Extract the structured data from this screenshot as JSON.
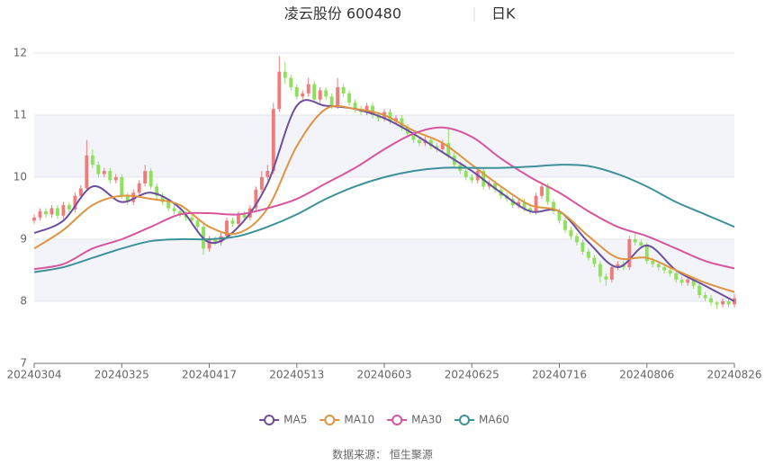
{
  "chart_data": {
    "type": "candlestick",
    "title": "凌云股份 600480",
    "period": "日K",
    "source": "数据来源： 恒生聚源",
    "up_color": "#f07b7b",
    "down_color": "#8fe05a",
    "xlim": [
      0,
      120
    ],
    "xticks": [
      {
        "value": 0,
        "label": "20240304"
      },
      {
        "value": 15,
        "label": "20240325"
      },
      {
        "value": 30,
        "label": "20240417"
      },
      {
        "value": 45,
        "label": "20240513"
      },
      {
        "value": 60,
        "label": "20240603"
      },
      {
        "value": 75,
        "label": "20240625"
      },
      {
        "value": 90,
        "label": "20240716"
      },
      {
        "value": 105,
        "label": "20240806"
      },
      {
        "value": 120,
        "label": "20240826"
      }
    ],
    "ylim": [
      7,
      12
    ],
    "yticks": [
      7,
      8,
      9,
      10,
      11,
      12
    ],
    "grid": true,
    "open": [
      9.3,
      9.35,
      9.45,
      9.4,
      9.5,
      9.38,
      9.55,
      9.48,
      9.7,
      9.82,
      10.35,
      10.2,
      10.05,
      10.1,
      9.95,
      10.0,
      9.7,
      9.6,
      9.75,
      9.9,
      10.1,
      9.85,
      9.7,
      9.6,
      9.5,
      9.45,
      9.4,
      9.35,
      9.3,
      9.2,
      8.85,
      9.0,
      8.95,
      9.05,
      9.3,
      9.25,
      9.4,
      9.35,
      9.5,
      9.8,
      10.0,
      10.1,
      11.1,
      11.7,
      11.6,
      11.45,
      11.3,
      11.35,
      11.5,
      11.25,
      11.4,
      11.3,
      11.15,
      11.45,
      11.35,
      11.2,
      11.1,
      11.05,
      11.15,
      11.0,
      10.95,
      11.05,
      10.9,
      10.95,
      10.8,
      10.7,
      10.6,
      10.55,
      10.6,
      10.5,
      10.45,
      10.55,
      10.35,
      10.2,
      10.1,
      10.0,
      9.95,
      10.1,
      9.85,
      9.9,
      9.8,
      9.7,
      9.65,
      9.55,
      9.6,
      9.5,
      9.45,
      9.7,
      9.85,
      9.6,
      9.45,
      9.3,
      9.15,
      9.05,
      8.95,
      8.8,
      8.7,
      8.6,
      8.4,
      8.35,
      8.55,
      8.6,
      8.55,
      9.0,
      8.95,
      8.9,
      8.65,
      8.6,
      8.55,
      8.5,
      8.45,
      8.35,
      8.3,
      8.35,
      8.25,
      8.1,
      8.05,
      7.98,
      7.95,
      8.0,
      7.95
    ],
    "close": [
      9.35,
      9.45,
      9.4,
      9.5,
      9.38,
      9.55,
      9.48,
      9.7,
      9.82,
      10.35,
      10.2,
      10.05,
      10.1,
      9.95,
      10.0,
      9.7,
      9.6,
      9.75,
      9.9,
      10.1,
      9.85,
      9.7,
      9.6,
      9.5,
      9.45,
      9.4,
      9.35,
      9.3,
      9.2,
      8.85,
      9.0,
      8.95,
      9.05,
      9.3,
      9.25,
      9.4,
      9.35,
      9.5,
      9.8,
      10.0,
      10.1,
      11.1,
      11.7,
      11.6,
      11.45,
      11.3,
      11.35,
      11.5,
      11.25,
      11.4,
      11.3,
      11.15,
      11.45,
      11.35,
      11.2,
      11.1,
      11.05,
      11.15,
      11.0,
      10.95,
      11.05,
      10.9,
      10.95,
      10.8,
      10.7,
      10.6,
      10.55,
      10.6,
      10.5,
      10.45,
      10.55,
      10.35,
      10.2,
      10.1,
      10.0,
      9.95,
      10.1,
      9.85,
      9.9,
      9.8,
      9.7,
      9.65,
      9.55,
      9.6,
      9.5,
      9.45,
      9.7,
      9.85,
      9.6,
      9.45,
      9.3,
      9.15,
      9.05,
      8.95,
      8.8,
      8.7,
      8.6,
      8.4,
      8.35,
      8.55,
      8.6,
      8.55,
      9.0,
      8.95,
      8.9,
      8.65,
      8.6,
      8.55,
      8.5,
      8.45,
      8.35,
      8.3,
      8.35,
      8.25,
      8.1,
      8.05,
      7.98,
      7.95,
      8.0,
      7.95,
      8.05
    ],
    "high": [
      9.4,
      9.5,
      9.5,
      9.55,
      9.55,
      9.6,
      9.6,
      9.75,
      9.87,
      10.6,
      10.45,
      10.25,
      10.15,
      10.15,
      10.05,
      10.05,
      9.75,
      9.8,
      9.95,
      10.2,
      10.15,
      9.9,
      9.75,
      9.65,
      9.55,
      9.5,
      9.45,
      9.4,
      9.35,
      9.25,
      9.05,
      9.05,
      9.1,
      9.35,
      9.35,
      9.45,
      9.45,
      9.55,
      9.85,
      10.1,
      10.2,
      11.2,
      11.95,
      11.85,
      11.65,
      11.5,
      11.4,
      11.6,
      11.55,
      11.45,
      11.45,
      11.35,
      11.6,
      11.5,
      11.4,
      11.25,
      11.15,
      11.2,
      11.2,
      11.05,
      11.1,
      11.1,
      11.0,
      11.0,
      10.85,
      10.75,
      10.65,
      10.65,
      10.65,
      10.55,
      10.6,
      10.8,
      10.4,
      10.25,
      10.15,
      10.05,
      10.15,
      10.15,
      9.95,
      9.95,
      9.85,
      9.75,
      9.7,
      9.65,
      9.65,
      9.55,
      9.75,
      9.9,
      9.9,
      9.65,
      9.5,
      9.35,
      9.2,
      9.1,
      9.0,
      8.85,
      8.75,
      8.65,
      8.45,
      8.6,
      8.65,
      8.65,
      9.05,
      9.1,
      9.0,
      8.95,
      8.7,
      8.65,
      8.6,
      8.55,
      8.5,
      8.4,
      8.4,
      8.4,
      8.3,
      8.15,
      8.1,
      8.0,
      8.05,
      8.05,
      8.12
    ],
    "low": [
      9.25,
      9.3,
      9.35,
      9.35,
      9.33,
      9.33,
      9.43,
      9.43,
      9.65,
      9.77,
      10.15,
      10.0,
      10.0,
      9.9,
      9.9,
      9.65,
      9.55,
      9.55,
      9.7,
      9.85,
      9.8,
      9.65,
      9.55,
      9.45,
      9.4,
      9.35,
      9.3,
      9.25,
      9.15,
      8.75,
      8.8,
      8.9,
      8.9,
      9.0,
      9.2,
      9.2,
      9.3,
      9.3,
      9.45,
      9.75,
      9.95,
      10.05,
      11.05,
      11.5,
      11.4,
      11.25,
      11.25,
      11.3,
      11.2,
      11.2,
      11.25,
      11.1,
      11.1,
      11.3,
      11.15,
      11.05,
      11.0,
      11.0,
      10.95,
      10.9,
      10.9,
      10.85,
      10.85,
      10.75,
      10.65,
      10.55,
      10.5,
      10.5,
      10.45,
      10.4,
      10.4,
      10.3,
      10.15,
      10.05,
      9.95,
      9.9,
      9.9,
      9.8,
      9.8,
      9.75,
      9.65,
      9.6,
      9.5,
      9.5,
      9.45,
      9.4,
      9.4,
      9.65,
      9.55,
      9.4,
      9.25,
      9.1,
      9.0,
      8.9,
      8.75,
      8.65,
      8.55,
      8.3,
      8.25,
      8.3,
      8.5,
      8.5,
      8.5,
      8.9,
      8.85,
      8.6,
      8.55,
      8.5,
      8.45,
      8.4,
      8.3,
      8.25,
      8.25,
      8.2,
      8.05,
      8.0,
      7.93,
      7.88,
      7.9,
      7.9,
      7.9
    ],
    "series": [
      {
        "name": "MA5",
        "color": "#6b4f9e",
        "x": [
          0,
          5,
          10,
          15,
          20,
          25,
          30,
          35,
          40,
          45,
          50,
          55,
          60,
          65,
          70,
          75,
          80,
          85,
          90,
          95,
          100,
          105,
          110,
          115,
          120
        ],
        "values": [
          9.1,
          9.3,
          9.85,
          9.6,
          9.75,
          9.5,
          8.95,
          9.2,
          9.9,
          11.15,
          11.15,
          11.1,
          10.95,
          10.7,
          10.4,
          10.1,
          9.75,
          9.45,
          9.45,
          8.95,
          8.55,
          8.9,
          8.5,
          8.25,
          8.0
        ]
      },
      {
        "name": "MA10",
        "color": "#de9440",
        "x": [
          0,
          5,
          10,
          15,
          20,
          25,
          30,
          35,
          40,
          45,
          50,
          55,
          60,
          65,
          70,
          75,
          80,
          85,
          90,
          95,
          100,
          105,
          110,
          115,
          120
        ],
        "values": [
          8.85,
          9.15,
          9.55,
          9.7,
          9.65,
          9.55,
          9.2,
          9.1,
          9.5,
          10.5,
          11.1,
          11.1,
          11.0,
          10.75,
          10.55,
          10.2,
          9.85,
          9.55,
          9.45,
          9.05,
          8.7,
          8.7,
          8.5,
          8.3,
          8.15
        ]
      },
      {
        "name": "MA30",
        "color": "#d6559c",
        "x": [
          0,
          5,
          10,
          15,
          20,
          25,
          30,
          35,
          40,
          45,
          50,
          55,
          60,
          65,
          70,
          75,
          80,
          85,
          90,
          95,
          100,
          105,
          110,
          115,
          120
        ],
        "values": [
          8.52,
          8.6,
          8.85,
          9.0,
          9.2,
          9.4,
          9.42,
          9.4,
          9.5,
          9.65,
          9.9,
          10.15,
          10.45,
          10.7,
          10.8,
          10.65,
          10.3,
          10.0,
          9.75,
          9.45,
          9.2,
          9.05,
          8.85,
          8.65,
          8.53
        ]
      },
      {
        "name": "MA60",
        "color": "#3d9199",
        "x": [
          0,
          5,
          10,
          15,
          20,
          25,
          30,
          35,
          40,
          45,
          50,
          55,
          60,
          65,
          70,
          75,
          80,
          85,
          90,
          95,
          100,
          105,
          110,
          115,
          120
        ],
        "values": [
          8.47,
          8.55,
          8.7,
          8.85,
          8.97,
          9.0,
          9.0,
          9.05,
          9.2,
          9.4,
          9.65,
          9.85,
          10.0,
          10.1,
          10.15,
          10.15,
          10.15,
          10.17,
          10.2,
          10.18,
          10.05,
          9.85,
          9.6,
          9.4,
          9.2
        ]
      }
    ]
  }
}
